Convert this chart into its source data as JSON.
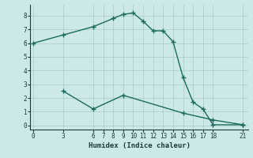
{
  "xlabel": "Humidex (Indice chaleur)",
  "ylabel": "",
  "bg_color": "#cde8e8",
  "line_color": "#1a6b5e",
  "grid_color": "#b0d0d0",
  "xticks": [
    0,
    3,
    6,
    7,
    8,
    9,
    10,
    11,
    12,
    13,
    14,
    15,
    16,
    17,
    18,
    21
  ],
  "yticks": [
    0,
    1,
    2,
    3,
    4,
    5,
    6,
    7,
    8
  ],
  "xlim": [
    -0.3,
    21.5
  ],
  "ylim": [
    -0.3,
    8.8
  ],
  "series1_x": [
    0,
    3,
    6,
    8,
    9,
    10,
    11,
    12,
    13,
    14,
    15,
    16,
    17,
    18,
    21
  ],
  "series1_y": [
    6.0,
    6.6,
    7.2,
    7.8,
    8.1,
    8.2,
    7.6,
    6.9,
    6.9,
    6.1,
    3.5,
    1.7,
    1.2,
    0.05,
    0.05
  ],
  "series2_x": [
    3,
    6,
    9,
    15,
    18,
    21
  ],
  "series2_y": [
    2.5,
    1.2,
    2.2,
    0.9,
    0.4,
    0.05
  ]
}
